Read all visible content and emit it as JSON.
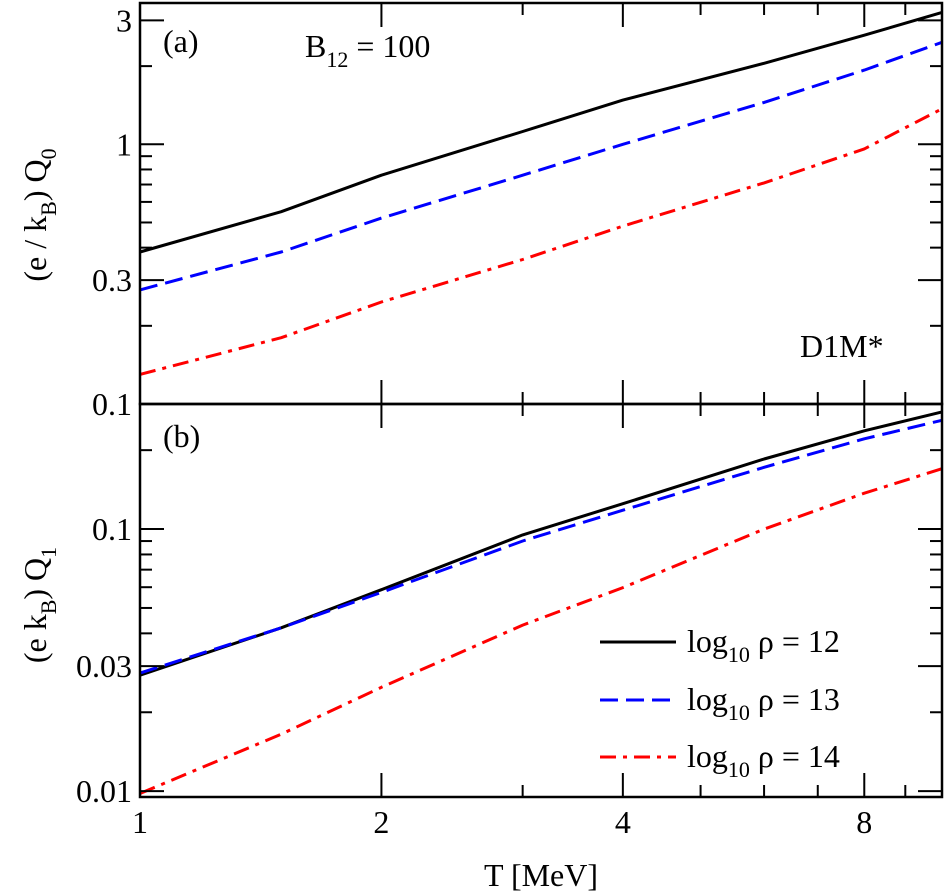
{
  "chart_data": [
    {
      "type": "line",
      "panel_label": "(a)",
      "annotation_main": "B",
      "annotation_sub": "12",
      "annotation_rest": " = 100",
      "model_label": "D1M*",
      "ylabel": {
        "pre": "(e / k",
        "sub1": "B",
        "mid": ") Q",
        "sub2": "0"
      },
      "xscale": "log",
      "yscale": "log",
      "xlim": [
        1,
        10
      ],
      "ylim": [
        0.1,
        3.5
      ],
      "yticks": [
        {
          "v": 0.1,
          "label": "0.1"
        },
        {
          "v": 0.3,
          "label": "0.3"
        },
        {
          "v": 1,
          "label": "1"
        },
        {
          "v": 3,
          "label": "3"
        }
      ],
      "x": [
        1,
        1.5,
        2,
        3,
        4,
        6,
        8,
        10
      ],
      "series": [
        {
          "color": "#000000",
          "style": "solid",
          "values": [
            0.385,
            0.55,
            0.76,
            1.12,
            1.48,
            2.05,
            2.63,
            3.22
          ]
        },
        {
          "color": "#0000ff",
          "style": "dashed",
          "values": [
            0.275,
            0.385,
            0.52,
            0.76,
            1.0,
            1.45,
            1.93,
            2.47
          ]
        },
        {
          "color": "#ff0000",
          "style": "dashdot",
          "values": [
            0.13,
            0.18,
            0.247,
            0.36,
            0.484,
            0.71,
            0.96,
            1.37
          ]
        }
      ]
    },
    {
      "type": "line",
      "panel_label": "(b)",
      "ylabel": {
        "pre": "(e  k",
        "sub1": "B",
        "mid": ") Q",
        "sub2": "1"
      },
      "xscale": "log",
      "yscale": "log",
      "xlim": [
        1,
        10
      ],
      "ylim": [
        0.0095,
        0.3
      ],
      "yticks": [
        {
          "v": 0.01,
          "label": "0.01"
        },
        {
          "v": 0.03,
          "label": "0.03"
        },
        {
          "v": 0.1,
          "label": "0.1"
        }
      ],
      "xticks": [
        {
          "v": 1,
          "label": "1"
        },
        {
          "v": 2,
          "label": "2"
        },
        {
          "v": 4,
          "label": "4"
        },
        {
          "v": 8,
          "label": "8"
        }
      ],
      "xlabel": "T [MeV]",
      "x": [
        1,
        1.5,
        2,
        3,
        4,
        6,
        8,
        10
      ],
      "series": [
        {
          "name_pre": "log",
          "name_sub": "10",
          "name_post": " ρ = 12",
          "color": "#000000",
          "style": "solid",
          "values": [
            0.0277,
            0.042,
            0.0587,
            0.095,
            0.125,
            0.185,
            0.237,
            0.28
          ]
        },
        {
          "name_pre": "log",
          "name_sub": "10",
          "name_post": " ρ = 13",
          "color": "#0000ff",
          "style": "dashed",
          "values": [
            0.0282,
            0.042,
            0.0573,
            0.09,
            0.118,
            0.172,
            0.221,
            0.26
          ]
        },
        {
          "name_pre": "log",
          "name_sub": "10",
          "name_post": " ρ = 14",
          "color": "#ff0000",
          "style": "dashdot",
          "values": [
            0.0098,
            0.0165,
            0.0249,
            0.043,
            0.0598,
            0.1,
            0.137,
            0.17
          ]
        }
      ],
      "legend_position": "lower-right"
    }
  ]
}
